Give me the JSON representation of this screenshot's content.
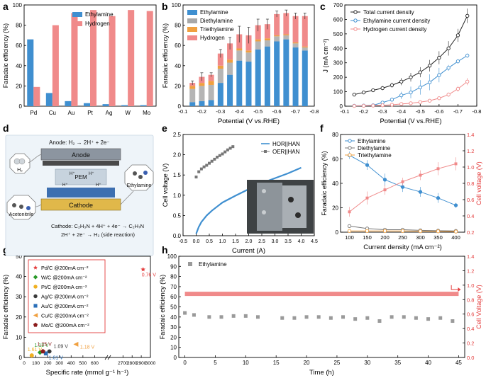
{
  "figure": {
    "panel_labels": [
      "a",
      "b",
      "c",
      "d",
      "e",
      "f",
      "g",
      "h"
    ],
    "colors": {
      "blue": "#3f8fd0",
      "pink": "#f08a8a",
      "grey": "#8f8f8f",
      "orange": "#f0a040",
      "black": "#222222",
      "red": "#e43c3c",
      "green": "#2a9a2a",
      "yellow": "#f0b020",
      "brown": "#8b1b1b"
    }
  },
  "chart_data": [
    {
      "id": "a",
      "type": "bar",
      "categories": [
        "Pd",
        "Cu",
        "Au",
        "Pt",
        "Ag",
        "W",
        "Mo"
      ],
      "series": [
        {
          "name": "Ethylamine",
          "values": [
            66,
            13,
            5,
            3,
            2,
            1,
            1
          ]
        },
        {
          "name": "Hydrogen",
          "values": [
            19,
            80,
            92,
            95,
            89,
            95,
            94
          ]
        }
      ],
      "xlabel": "",
      "ylabel": "Faradaic efficiency (%)",
      "ylim": [
        0,
        100
      ],
      "yticks": [
        "0",
        "20",
        "40",
        "60",
        "80",
        "100"
      ]
    },
    {
      "id": "b",
      "type": "bar",
      "stacked": true,
      "categories": [
        "-0.15",
        "-0.2",
        "-0.25",
        "-0.3",
        "-0.35",
        "-0.4",
        "-0.45",
        "-0.5",
        "-0.55",
        "-0.6",
        "-0.65",
        "-0.7",
        "-0.75"
      ],
      "series": [
        {
          "name": "Ethylamine",
          "values": [
            4,
            5,
            6,
            23,
            31,
            45,
            44,
            56,
            59,
            64,
            66,
            58,
            55
          ]
        },
        {
          "name": "Diethylamine",
          "values": [
            13,
            15,
            15,
            14,
            12,
            10,
            9,
            8,
            6,
            5,
            4,
            4,
            3
          ]
        },
        {
          "name": "Triethylamine",
          "values": [
            3,
            3,
            4,
            3,
            3,
            2,
            2,
            2,
            2,
            1,
            1,
            1,
            1
          ]
        },
        {
          "name": "Hydrogen",
          "values": [
            3,
            6,
            6,
            12,
            16,
            14,
            15,
            14,
            14,
            21,
            21,
            26,
            30
          ]
        }
      ],
      "error": [
        2,
        4,
        2,
        4,
        6,
        8,
        8,
        6,
        5,
        3,
        3,
        3,
        3
      ],
      "xlabel": "Potential (V vs.RHE)",
      "ylabel": "Faradaic efficiency (%)",
      "xlim": [
        -0.1,
        -0.8
      ],
      "ylim": [
        0,
        100
      ],
      "xticks": [
        "-0.1",
        "-0.2",
        "-0.3",
        "-0.4",
        "-0.5",
        "-0.6",
        "-0.7",
        "-0.8"
      ],
      "yticks": [
        "0",
        "20",
        "40",
        "60",
        "80",
        "100"
      ]
    },
    {
      "id": "c",
      "type": "line",
      "series": [
        {
          "name": "Total current density",
          "x": [
            -0.15,
            -0.2,
            -0.25,
            -0.3,
            -0.35,
            -0.4,
            -0.45,
            -0.5,
            -0.55,
            -0.6,
            -0.65,
            -0.7,
            -0.75
          ],
          "y": [
            80,
            95,
            110,
            125,
            145,
            170,
            200,
            235,
            280,
            335,
            400,
            490,
            625
          ],
          "err": [
            10,
            12,
            12,
            15,
            18,
            25,
            30,
            35,
            40,
            45,
            50,
            45,
            50
          ]
        },
        {
          "name": "Ethylamine current density",
          "x": [
            -0.15,
            -0.2,
            -0.25,
            -0.3,
            -0.35,
            -0.4,
            -0.45,
            -0.5,
            -0.55,
            -0.6,
            -0.65,
            -0.7,
            -0.75
          ],
          "y": [
            3,
            4,
            6,
            25,
            45,
            75,
            95,
            130,
            165,
            215,
            265,
            310,
            350
          ],
          "err": [
            4,
            4,
            6,
            10,
            15,
            25,
            40,
            50,
            55,
            50,
            20,
            15,
            15
          ]
        },
        {
          "name": "Hydrogen current density",
          "x": [
            -0.15,
            -0.2,
            -0.25,
            -0.3,
            -0.35,
            -0.4,
            -0.45,
            -0.5,
            -0.55,
            -0.6,
            -0.65,
            -0.7,
            -0.75
          ],
          "y": [
            2,
            3,
            4,
            6,
            10,
            15,
            20,
            28,
            38,
            55,
            80,
            120,
            170
          ],
          "err": [
            2,
            2,
            2,
            3,
            4,
            5,
            6,
            8,
            10,
            12,
            15,
            20,
            25
          ]
        }
      ],
      "xlabel": "Potential (V vs.RHE)",
      "ylabel": "J (mA cm⁻²)",
      "xlim": [
        -0.1,
        -0.8
      ],
      "ylim": [
        0,
        700
      ],
      "xticks": [
        "-0.1",
        "-0.2",
        "-0.3",
        "-0.4",
        "-0.5",
        "-0.6",
        "-0.7",
        "-0.8"
      ],
      "yticks": [
        "0",
        "100",
        "200",
        "300",
        "400",
        "500",
        "600",
        "700"
      ]
    },
    {
      "id": "e",
      "type": "line",
      "series": [
        {
          "name": "HOR||HAN",
          "x": [
            0,
            0.1,
            0.2,
            0.4,
            0.6,
            0.8,
            1.0,
            1.5,
            2.0,
            2.5,
            3.0,
            3.5,
            4.0
          ],
          "y": [
            0.05,
            0.22,
            0.34,
            0.5,
            0.62,
            0.72,
            0.82,
            0.99,
            1.15,
            1.3,
            1.42,
            1.54,
            1.68
          ]
        },
        {
          "name": "OER||HAN",
          "x": [
            0,
            0.1,
            0.2,
            0.3,
            0.4,
            0.5,
            0.6,
            0.7,
            0.8,
            0.9,
            1.0,
            1.1,
            1.2,
            1.3,
            1.4
          ],
          "y": [
            1.45,
            1.58,
            1.65,
            1.7,
            1.74,
            1.79,
            1.84,
            1.89,
            1.94,
            1.98,
            2.02,
            2.07,
            2.12,
            2.16,
            2.2
          ]
        }
      ],
      "xlabel": "Current (A)",
      "ylabel": "Cell voltage (V)",
      "xlim": [
        -0.5,
        4.5
      ],
      "ylim": [
        0,
        2.5
      ],
      "xticks": [
        "-0.5",
        "0.0",
        "0.5",
        "1.0",
        "1.5",
        "2.0",
        "2.5",
        "3.0",
        "3.5",
        "4.0",
        "4.5"
      ],
      "yticks": [
        "0.0",
        "0.5",
        "1.0",
        "1.5",
        "2.0",
        "2.5"
      ]
    },
    {
      "id": "f",
      "type": "line",
      "x": [
        100,
        150,
        200,
        250,
        300,
        350,
        400
      ],
      "series": [
        {
          "name": "Ethylamine",
          "y": [
            63,
            55,
            43,
            37,
            33,
            28,
            22
          ],
          "err": [
            3,
            4,
            5,
            4,
            4,
            4,
            2
          ],
          "axis": "left"
        },
        {
          "name": "Diethylamine",
          "y": [
            5,
            3,
            2,
            2,
            1.5,
            1.2,
            1
          ],
          "err": [
            0.5,
            0.5,
            0.5,
            0.4,
            0.3,
            0.3,
            0.2
          ],
          "axis": "left"
        },
        {
          "name": "Triethylamine",
          "y": [
            1,
            1,
            1,
            1,
            0.8,
            0.7,
            0.5
          ],
          "err": [
            0.3,
            0.3,
            0.3,
            0.3,
            0.3,
            0.2,
            0.2
          ],
          "axis": "left"
        },
        {
          "name": "Cell voltage",
          "y": [
            0.45,
            0.62,
            0.72,
            0.82,
            0.9,
            0.98,
            1.04
          ],
          "err": [
            0.06,
            0.08,
            0.06,
            0.05,
            0.06,
            0.08,
            0.08
          ],
          "axis": "right"
        }
      ],
      "xlabel": "Current density (mA cm⁻²)",
      "ylabel": "Faradaic efficiency (%)",
      "y2label": "Cell voltage (V)",
      "xlim": [
        75,
        425
      ],
      "ylim": [
        0,
        80
      ],
      "y2lim": [
        0.2,
        1.4
      ],
      "xticks": [
        "100",
        "150",
        "200",
        "250",
        "300",
        "350",
        "400"
      ],
      "yticks": [
        "0",
        "20",
        "40",
        "60",
        "80"
      ],
      "y2ticks": [
        "0.2",
        "0.4",
        "0.6",
        "0.8",
        "1.0",
        "1.2",
        "1.4"
      ]
    },
    {
      "id": "g",
      "type": "scatter",
      "points": [
        {
          "name": "Pd/C @200mA cm⁻²",
          "x": 2920,
          "y": 43.5,
          "label": "0.76 V",
          "marker": "star",
          "color": "#e43c3c"
        },
        {
          "name": "W/C @200mA cm⁻²",
          "x": 135,
          "y": 2.5,
          "label": "1.13 V",
          "marker": "diamond",
          "color": "#2a9a2a"
        },
        {
          "name": "Pt/C @200mA cm⁻²",
          "x": 65,
          "y": 1.0,
          "label": "1.61 V",
          "marker": "circle",
          "color": "#f0b020"
        },
        {
          "name": "Ag/C @200mA cm⁻²",
          "x": 215,
          "y": 3.0,
          "label": "1.09 V",
          "marker": "circle",
          "color": "#3a3a3a"
        },
        {
          "name": "Au/C @200mA cm⁻²",
          "x": 185,
          "y": 2.0,
          "label": "1.01 V",
          "marker": "square",
          "color": "#2a6fb8"
        },
        {
          "name": "Cu/C @200mA cm⁻²",
          "x": 440,
          "y": 6.5,
          "label": "1.18 V",
          "marker": "triangle",
          "color": "#f0a040"
        },
        {
          "name": "Mo/C @200mA cm⁻²",
          "x": 160,
          "y": 3.0,
          "label": "1.25 V",
          "marker": "pentagon",
          "color": "#8b1b1b"
        }
      ],
      "xlabel": "Specific rate (mmol g⁻¹ h⁻¹)",
      "ylabel": "Faradaic efficiency (%)",
      "xlim": [
        0,
        3000
      ],
      "ylim": [
        0,
        50
      ],
      "xbreak": [
        700,
        2550
      ],
      "xticks": [
        "0",
        "100",
        "200",
        "300",
        "400",
        "500",
        "600",
        "2700",
        "2800",
        "2900",
        "3000"
      ],
      "yticks": [
        "0",
        "10",
        "20",
        "30",
        "40",
        "50"
      ]
    },
    {
      "id": "h",
      "type": "scatter",
      "series": [
        {
          "name": "Ethylamine",
          "x": [
            0,
            1.5,
            4,
            6,
            8,
            10,
            12,
            16,
            18,
            20,
            22,
            24,
            26,
            28,
            30,
            32,
            34,
            36,
            38,
            40,
            42,
            44
          ],
          "y": [
            44,
            42,
            40,
            40,
            41,
            41,
            40,
            39,
            39,
            40,
            40,
            39,
            40,
            38,
            39,
            36,
            40,
            40,
            39,
            38,
            39,
            36
          ],
          "axis": "left"
        },
        {
          "name": "Cell voltage",
          "x_range": [
            0,
            45
          ],
          "value": 0.88,
          "axis": "right"
        }
      ],
      "xlabel": "Time (h)",
      "ylabel": "Faradaic efficiency (%)",
      "y2label": "Cell Voltage (V)",
      "xlim": [
        -1,
        46
      ],
      "ylim": [
        0,
        100
      ],
      "y2lim": [
        0,
        1.4
      ],
      "xticks": [
        "0",
        "5",
        "10",
        "15",
        "20",
        "25",
        "30",
        "35",
        "40",
        "45"
      ],
      "yticks": [
        "0",
        "10",
        "20",
        "30",
        "40",
        "50",
        "60",
        "70",
        "80",
        "90",
        "100"
      ],
      "y2ticks": [
        "0.0",
        "0.2",
        "0.4",
        "0.6",
        "0.8",
        "1.0",
        "1.2",
        "1.4"
      ]
    }
  ],
  "diagram_d": {
    "anode_reaction": "Anode: H₂ → 2H⁺ + 2e⁻",
    "anode_label": "Anode",
    "cathode_label": "Cathode",
    "membrane_label": "PEM",
    "proton": "H⁺",
    "h2_label": "H₂",
    "reactant_label": "Acetonitrile",
    "product_label": "Ethylamine",
    "cathode_reaction": "Cathode: C₂H₃N + 4H⁺ + 4e⁻ → C₂H₇N",
    "side_reaction": "2H⁺ + 2e⁻ → H₂ (side reaction)"
  }
}
